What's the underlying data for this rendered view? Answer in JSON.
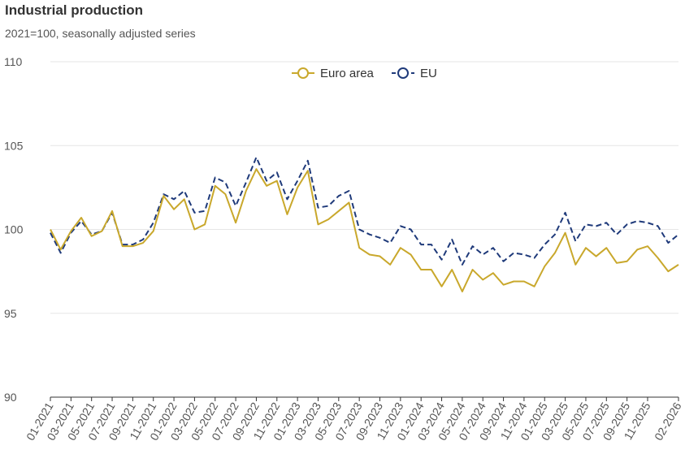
{
  "chart_data": {
    "type": "line",
    "title": "Industrial production",
    "subtitle": "2021=100, seasonally adjusted series",
    "xlabel": "",
    "ylabel": "",
    "ylim": [
      90,
      110
    ],
    "yticks": [
      90,
      95,
      100,
      105,
      110
    ],
    "grid": "horizontal",
    "legend_position": "top-center",
    "x": [
      "01-2021",
      "02-2021",
      "03-2021",
      "04-2021",
      "05-2021",
      "06-2021",
      "07-2021",
      "08-2021",
      "09-2021",
      "10-2021",
      "11-2021",
      "12-2021",
      "01-2022",
      "02-2022",
      "03-2022",
      "04-2022",
      "05-2022",
      "06-2022",
      "07-2022",
      "08-2022",
      "09-2022",
      "10-2022",
      "11-2022",
      "12-2022",
      "01-2023",
      "02-2023",
      "03-2023",
      "04-2023",
      "05-2023",
      "06-2023",
      "07-2023",
      "08-2023",
      "09-2023",
      "10-2023",
      "11-2023",
      "12-2023",
      "01-2024",
      "02-2024",
      "03-2024",
      "04-2024",
      "05-2024",
      "06-2024",
      "07-2024",
      "08-2024",
      "09-2024",
      "10-2024",
      "11-2024",
      "12-2024",
      "01-2025",
      "02-2025",
      "03-2025",
      "04-2025",
      "05-2025",
      "06-2025",
      "07-2025",
      "08-2025",
      "09-2025",
      "10-2025",
      "11-2025",
      "12-2025",
      "01-2026",
      "02-2026"
    ],
    "xtick_labels": [
      "01-2021",
      "03-2021",
      "05-2021",
      "07-2021",
      "09-2021",
      "11-2021",
      "01-2022",
      "03-2022",
      "05-2022",
      "07-2022",
      "09-2022",
      "11-2022",
      "01-2023",
      "03-2023",
      "05-2023",
      "07-2023",
      "09-2023",
      "11-2023",
      "01-2024",
      "03-2024",
      "05-2024",
      "07-2024",
      "09-2024",
      "11-2024",
      "01-2025",
      "03-2025",
      "05-2025",
      "07-2025",
      "09-2025",
      "11-2025",
      "02-2026"
    ],
    "series": [
      {
        "name": "Euro area",
        "color": "#C9A82C",
        "style": "solid",
        "values": [
          100.0,
          98.8,
          99.9,
          100.7,
          99.6,
          99.9,
          101.1,
          99.0,
          99.0,
          99.2,
          99.9,
          102.0,
          101.2,
          101.8,
          100.0,
          100.3,
          102.6,
          102.1,
          100.4,
          102.3,
          103.6,
          102.6,
          102.9,
          100.9,
          102.5,
          103.5,
          100.3,
          100.6,
          101.1,
          101.6,
          98.9,
          98.5,
          98.4,
          97.9,
          98.9,
          98.5,
          97.6,
          97.6,
          96.6,
          97.6,
          96.3,
          97.6,
          97.0,
          97.4,
          96.7,
          96.9,
          96.9,
          96.6,
          97.8,
          98.6,
          99.8,
          97.9,
          98.9,
          98.4,
          98.9,
          98.0,
          98.1,
          98.8,
          99.0,
          98.3,
          97.5,
          97.9
        ]
      },
      {
        "name": "EU",
        "color": "#1F3A7A",
        "style": "dashed",
        "values": [
          99.8,
          98.6,
          99.8,
          100.5,
          99.7,
          99.9,
          101.0,
          99.1,
          99.1,
          99.4,
          100.4,
          102.1,
          101.8,
          102.3,
          101.0,
          101.1,
          103.1,
          102.8,
          101.4,
          102.8,
          104.3,
          102.9,
          103.4,
          101.8,
          102.9,
          104.1,
          101.3,
          101.4,
          102.0,
          102.3,
          100.0,
          99.7,
          99.5,
          99.2,
          100.2,
          100.0,
          99.1,
          99.1,
          98.2,
          99.4,
          97.9,
          99.0,
          98.5,
          98.9,
          98.1,
          98.6,
          98.5,
          98.3,
          99.1,
          99.7,
          101.0,
          99.3,
          100.3,
          100.2,
          100.4,
          99.7,
          100.3,
          100.5,
          100.4,
          100.2,
          99.2,
          99.7
        ]
      }
    ]
  }
}
